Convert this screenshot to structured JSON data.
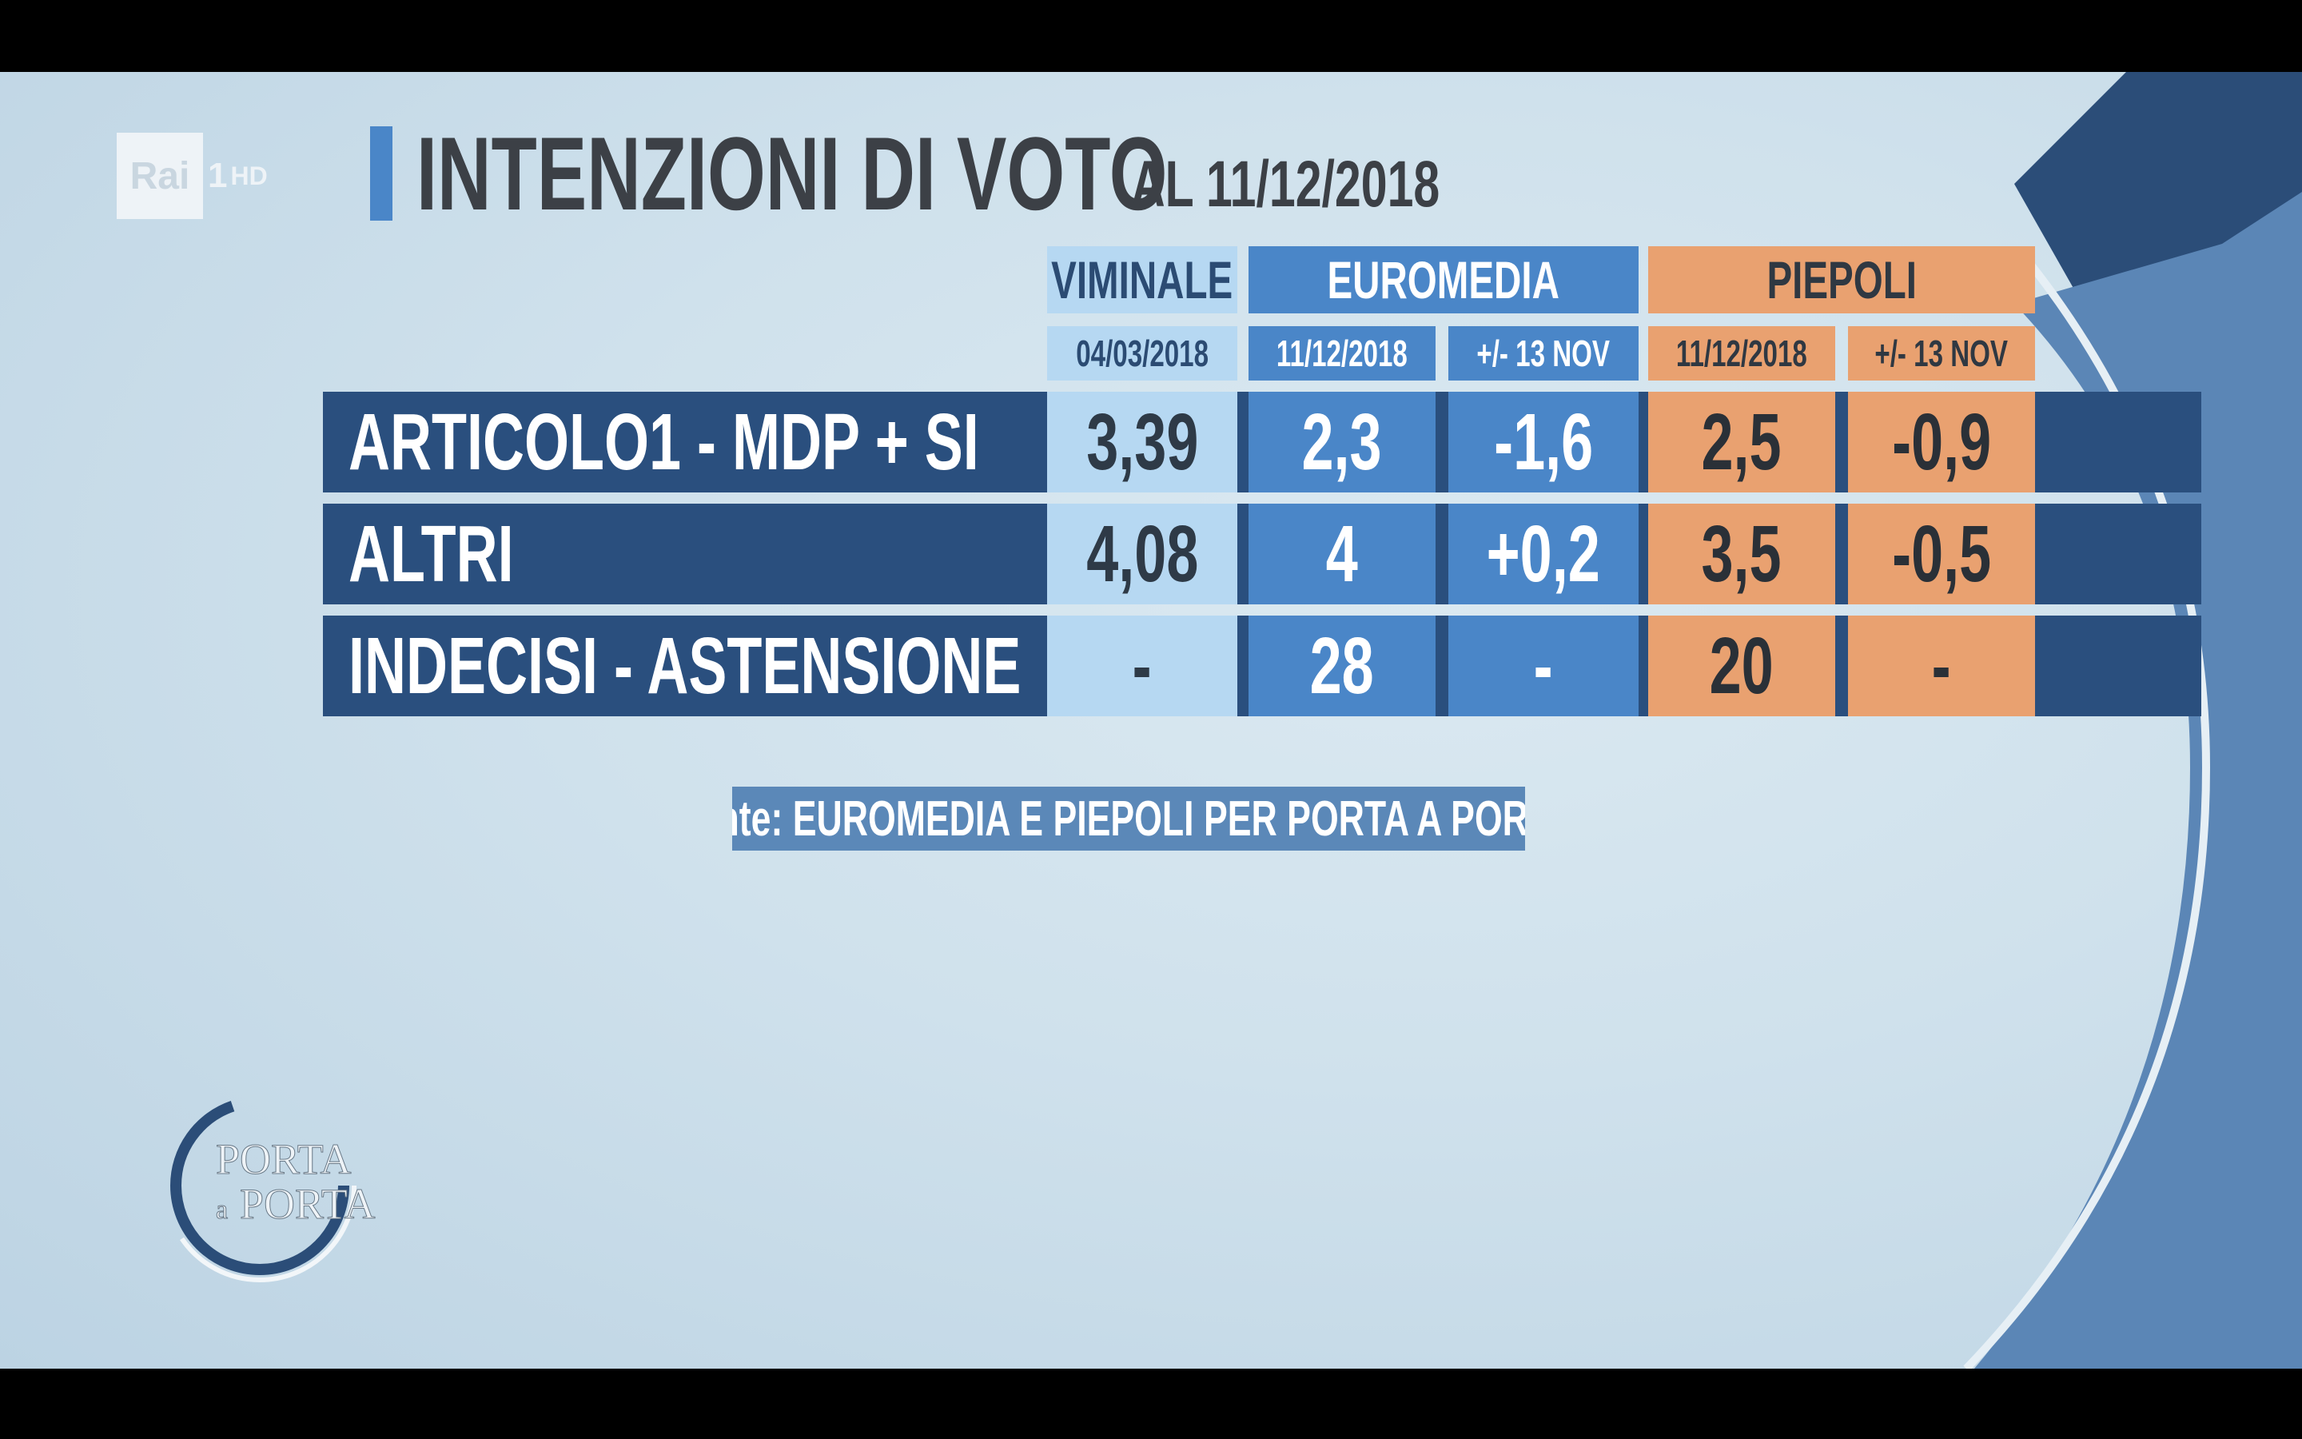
{
  "channel": {
    "brand": "Rai",
    "number": "1",
    "quality": "HD"
  },
  "title": {
    "main": "INTENZIONI DI VOTO",
    "sub": "AL 11/12/2018"
  },
  "columns": {
    "viminale": {
      "label": "VIMINALE",
      "date": "04/03/2018"
    },
    "euromedia": {
      "label": "EUROMEDIA",
      "date": "11/12/2018",
      "delta": "+/- 13 NOV"
    },
    "piepoli": {
      "label": "PIEPOLI",
      "date": "11/12/2018",
      "delta": "+/- 13 NOV"
    }
  },
  "rows": [
    {
      "party": "ARTICOLO1 - MDP + SI",
      "viminale": "3,39",
      "euromedia": "2,3",
      "euromedia_delta": "-1,6",
      "piepoli": "2,5",
      "piepoli_delta": "-0,9"
    },
    {
      "party": "ALTRI",
      "viminale": "4,08",
      "euromedia": "4",
      "euromedia_delta": "+0,2",
      "piepoli": "3,5",
      "piepoli_delta": "-0,5"
    },
    {
      "party": "INDECISI - ASTENSIONE",
      "viminale": "-",
      "euromedia": "28",
      "euromedia_delta": "-",
      "piepoli": "20",
      "piepoli_delta": "-"
    }
  ],
  "source": "fonte: EUROMEDIA E PIEPOLI PER PORTA A PORTA",
  "show_logo": {
    "line1": "PORTA",
    "line2": "a",
    "line3": "PORTA"
  },
  "colors": {
    "viminale": "#b6d8f2",
    "euromedia": "#4a86c8",
    "piepoli": "#e9a170",
    "row_bar": "#2a4f7e",
    "background": "#d4e5ef",
    "arc_dark": "#2b4d78",
    "arc_mid": "#5b86b6"
  }
}
